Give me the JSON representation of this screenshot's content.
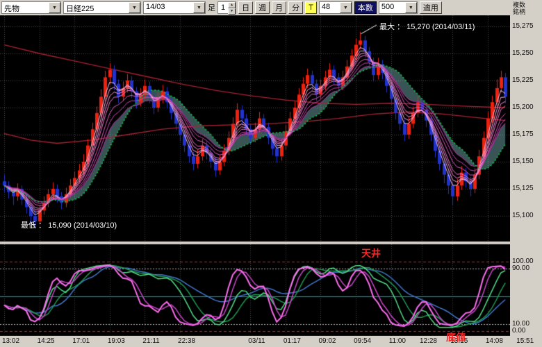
{
  "toolbar": {
    "instrument_type": "先物",
    "symbol": "日経225",
    "contract_month": "14/03",
    "bar_label": "足",
    "bar_multiplier": "1",
    "period_buttons": [
      "日",
      "週",
      "月",
      "分"
    ],
    "tick_button": "T",
    "tick_count": "48",
    "bars_label": "本数",
    "bars_count": "500",
    "apply_button": "適用",
    "multi_symbol_link": "複数銘柄"
  },
  "annotations": {
    "max_label": "最大 ： 15,270 (2014/03/11)",
    "min_label": "最低 ： 15,090 (2014/03/10)",
    "ceiling_label": "天井",
    "bottom_label": "底値"
  },
  "colors": {
    "toolbar_bg": "#d4d0c8",
    "chart_bg": "#000000",
    "grid": "#4a4a4a",
    "candle_up": "#ee2211",
    "candle_down": "#2233cc",
    "ribbon": [
      "#ffc4ea",
      "#ffaae2",
      "#ff90d8",
      "#f278cc",
      "#e05ec0",
      "#cc46b2",
      "#b530a6"
    ],
    "ma_green": "#00cc44",
    "ma_red": "#aa2233",
    "cloud_fill": "rgba(160,240,240,0.35)",
    "osc_fast": "#ff6ef2",
    "osc_fast2": "#c946c9",
    "osc_slow": "#55dd88",
    "osc_slow2": "#1e9950",
    "osc_long": "#4477cc",
    "level_red": "#dd2222",
    "level_white": "#bbbbbb",
    "level_mid": "#00a8a8",
    "annotation_white": "#ffffff",
    "annotation_red": "#ff2222",
    "axis_text": "#111111"
  },
  "chart_data": {
    "type": "candlestick",
    "symbol": "日経225 先物 14/03",
    "interval": "48T",
    "max_price": 15270,
    "max_date": "2014/03/11",
    "min_price": 15090,
    "min_date": "2014/03/10",
    "ylim": [
      15090,
      15275
    ],
    "y_axis_labels": [
      "15,275",
      "15,250",
      "15,225",
      "15,200",
      "15,175",
      "15,150",
      "15,125",
      "15,100"
    ],
    "y_axis_values": [
      15275,
      15250,
      15225,
      15200,
      15175,
      15150,
      15125,
      15100
    ],
    "osc_axis_labels": [
      "100.00",
      "90.00",
      "10.00",
      "0.00"
    ],
    "osc_axis_values": [
      100,
      90,
      10,
      0
    ],
    "x_axis_labels": [
      "13:02",
      "14:25",
      "17:01",
      "19:03",
      "21:11",
      "22:38",
      "03/11",
      "01:17",
      "09:02",
      "09:54",
      "11:00",
      "12:28",
      "13:15",
      "14:08",
      "15:51"
    ],
    "x_label_positions": [
      0,
      8,
      16,
      24,
      32,
      40,
      56,
      64,
      72,
      80,
      88,
      95,
      102,
      110,
      117
    ],
    "candles": [
      [
        15132,
        15138,
        15122,
        15128
      ],
      [
        15128,
        15132,
        15116,
        15122
      ],
      [
        15122,
        15126,
        15110,
        15118
      ],
      [
        15118,
        15130,
        15114,
        15125
      ],
      [
        15125,
        15128,
        15110,
        15115
      ],
      [
        15115,
        15120,
        15102,
        15108
      ],
      [
        15108,
        15112,
        15094,
        15100
      ],
      [
        15100,
        15105,
        15090,
        15095
      ],
      [
        15095,
        15110,
        15092,
        15105
      ],
      [
        15105,
        15118,
        15101,
        15112
      ],
      [
        15112,
        15125,
        15108,
        15120
      ],
      [
        15120,
        15131,
        15116,
        15125
      ],
      [
        15125,
        15129,
        15112,
        15118
      ],
      [
        15118,
        15122,
        15106,
        15112
      ],
      [
        15112,
        15126,
        15108,
        15120
      ],
      [
        15120,
        15134,
        15116,
        15128
      ],
      [
        15128,
        15141,
        15124,
        15135
      ],
      [
        15135,
        15148,
        15131,
        15142
      ],
      [
        15142,
        15157,
        15138,
        15150
      ],
      [
        15150,
        15171,
        15146,
        15165
      ],
      [
        15165,
        15186,
        15161,
        15180
      ],
      [
        15180,
        15201,
        15176,
        15195
      ],
      [
        15195,
        15217,
        15191,
        15210
      ],
      [
        15210,
        15234,
        15206,
        15228
      ],
      [
        15228,
        15241,
        15222,
        15235
      ],
      [
        15235,
        15239,
        15216,
        15222
      ],
      [
        15222,
        15226,
        15204,
        15210
      ],
      [
        15210,
        15224,
        15206,
        15218
      ],
      [
        15218,
        15231,
        15214,
        15225
      ],
      [
        15225,
        15229,
        15209,
        15215
      ],
      [
        15215,
        15219,
        15199,
        15205
      ],
      [
        15205,
        15218,
        15201,
        15212
      ],
      [
        15212,
        15226,
        15208,
        15220
      ],
      [
        15220,
        15224,
        15204,
        15210
      ],
      [
        15210,
        15214,
        15194,
        15200
      ],
      [
        15200,
        15214,
        15196,
        15208
      ],
      [
        15208,
        15221,
        15204,
        15215
      ],
      [
        15215,
        15219,
        15199,
        15205
      ],
      [
        15205,
        15209,
        15189,
        15195
      ],
      [
        15195,
        15199,
        15179,
        15185
      ],
      [
        15185,
        15189,
        15169,
        15175
      ],
      [
        15175,
        15179,
        15159,
        15165
      ],
      [
        15165,
        15169,
        15149,
        15155
      ],
      [
        15155,
        15159,
        15142,
        15148
      ],
      [
        15148,
        15161,
        15144,
        15155
      ],
      [
        15155,
        15171,
        15151,
        15165
      ],
      [
        15165,
        15169,
        15152,
        15158
      ],
      [
        15158,
        15162,
        15144,
        15150
      ],
      [
        15150,
        15154,
        15136,
        15142
      ],
      [
        15142,
        15156,
        15138,
        15150
      ],
      [
        15150,
        15166,
        15146,
        15160
      ],
      [
        15160,
        15178,
        15156,
        15172
      ],
      [
        15172,
        15191,
        15168,
        15185
      ],
      [
        15185,
        15204,
        15181,
        15198
      ],
      [
        15198,
        15202,
        15184,
        15190
      ],
      [
        15190,
        15194,
        15174,
        15180
      ],
      [
        15180,
        15184,
        15166,
        15172
      ],
      [
        15172,
        15186,
        15168,
        15180
      ],
      [
        15180,
        15196,
        15176,
        15190
      ],
      [
        15190,
        15194,
        15176,
        15182
      ],
      [
        15182,
        15186,
        15166,
        15172
      ],
      [
        15172,
        15176,
        15156,
        15162
      ],
      [
        15162,
        15166,
        15149,
        15155
      ],
      [
        15155,
        15171,
        15151,
        15165
      ],
      [
        15165,
        15184,
        15161,
        15178
      ],
      [
        15178,
        15196,
        15174,
        15190
      ],
      [
        15190,
        15206,
        15186,
        15200
      ],
      [
        15200,
        15218,
        15196,
        15212
      ],
      [
        15212,
        15228,
        15208,
        15222
      ],
      [
        15222,
        15236,
        15218,
        15230
      ],
      [
        15230,
        15234,
        15216,
        15222
      ],
      [
        15222,
        15226,
        15206,
        15212
      ],
      [
        15212,
        15226,
        15208,
        15220
      ],
      [
        15220,
        15234,
        15216,
        15228
      ],
      [
        15228,
        15241,
        15224,
        15235
      ],
      [
        15235,
        15239,
        15222,
        15228
      ],
      [
        15228,
        15232,
        15214,
        15220
      ],
      [
        15220,
        15234,
        15216,
        15228
      ],
      [
        15228,
        15244,
        15224,
        15238
      ],
      [
        15238,
        15254,
        15234,
        15248
      ],
      [
        15248,
        15264,
        15244,
        15258
      ],
      [
        15258,
        15270,
        15254,
        15262
      ],
      [
        15262,
        15266,
        15246,
        15252
      ],
      [
        15252,
        15256,
        15236,
        15242
      ],
      [
        15242,
        15246,
        15224,
        15230
      ],
      [
        15230,
        15246,
        15226,
        15240
      ],
      [
        15240,
        15244,
        15226,
        15232
      ],
      [
        15232,
        15236,
        15214,
        15220
      ],
      [
        15220,
        15224,
        15202,
        15208
      ],
      [
        15208,
        15212,
        15189,
        15195
      ],
      [
        15195,
        15199,
        15179,
        15185
      ],
      [
        15185,
        15189,
        15169,
        15175
      ],
      [
        15175,
        15191,
        15171,
        15185
      ],
      [
        15185,
        15201,
        15181,
        15195
      ],
      [
        15195,
        15211,
        15191,
        15205
      ],
      [
        15205,
        15209,
        15192,
        15198
      ],
      [
        15198,
        15202,
        15182,
        15188
      ],
      [
        15188,
        15192,
        15169,
        15175
      ],
      [
        15175,
        15179,
        15154,
        15160
      ],
      [
        15160,
        15164,
        15142,
        15148
      ],
      [
        15148,
        15152,
        15130,
        15138
      ],
      [
        15138,
        15142,
        15120,
        15128
      ],
      [
        15128,
        15132,
        15110,
        15118
      ],
      [
        15118,
        15134,
        15114,
        15128
      ],
      [
        15128,
        15146,
        15124,
        15140
      ],
      [
        15140,
        15144,
        15126,
        15132
      ],
      [
        15132,
        15136,
        15118,
        15125
      ],
      [
        15125,
        15144,
        15121,
        15138
      ],
      [
        15138,
        15161,
        15134,
        15155
      ],
      [
        15155,
        15178,
        15151,
        15172
      ],
      [
        15172,
        15196,
        15168,
        15190
      ],
      [
        15190,
        15211,
        15186,
        15205
      ],
      [
        15205,
        15226,
        15201,
        15218
      ],
      [
        15218,
        15234,
        15214,
        15228
      ],
      [
        15228,
        15232,
        15204,
        15210
      ]
    ],
    "overlays": {
      "ema_ribbon_periods": [
        3,
        4,
        5,
        6,
        8,
        10,
        12
      ],
      "green_sma_period": 13,
      "red_lines": [
        {
          "name": "long-ma",
          "points": [
            [
              0,
              15258
            ],
            [
              8,
              15250
            ],
            [
              16,
              15243
            ],
            [
              24,
              15236
            ],
            [
              32,
              15229
            ],
            [
              40,
              15222
            ],
            [
              48,
              15216
            ],
            [
              56,
              15211
            ],
            [
              64,
              15207
            ],
            [
              72,
              15204
            ],
            [
              80,
              15203
            ],
            [
              88,
              15204
            ],
            [
              96,
              15203
            ],
            [
              106,
              15201
            ],
            [
              114,
              15200
            ]
          ]
        },
        {
          "name": "mid-ma",
          "points": [
            [
              0,
              15176
            ],
            [
              6,
              15170
            ],
            [
              12,
              15167
            ],
            [
              20,
              15170
            ],
            [
              28,
              15175
            ],
            [
              36,
              15180
            ],
            [
              44,
              15183
            ],
            [
              52,
              15184
            ],
            [
              60,
              15185
            ],
            [
              68,
              15187
            ],
            [
              76,
              15190
            ],
            [
              84,
              15194
            ],
            [
              92,
              15196
            ],
            [
              100,
              15194
            ],
            [
              107,
              15191
            ],
            [
              114,
              15188
            ]
          ]
        }
      ]
    },
    "oscillator": {
      "type": "stochastic",
      "fast_period": 9,
      "slow_period": 26,
      "long_period": 55,
      "smooth": 3,
      "levels": {
        "ceiling": 100,
        "upper": 90,
        "mid": 50,
        "lower": 10,
        "floor": 0
      }
    }
  }
}
